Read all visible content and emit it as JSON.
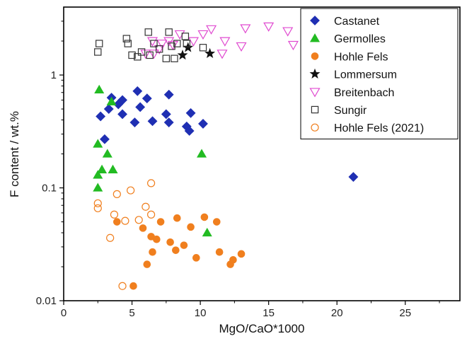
{
  "chart_data": {
    "type": "scatter",
    "xlabel": "MgO/CaO*1000",
    "ylabel": "F content / wt.%",
    "xlim": [
      0,
      29
    ],
    "ylim": [
      0.01,
      4
    ],
    "y_scale": "log",
    "x_ticks": [
      "0",
      "5",
      "10",
      "15",
      "20",
      "25"
    ],
    "y_ticks": [
      "0.01",
      "0.1",
      "1"
    ],
    "grid": false,
    "legend_position": "top-right",
    "series": [
      {
        "name": "Castanet",
        "marker": "diamond",
        "color": "#1f2fb3",
        "filled": true,
        "points": [
          [
            2.7,
            0.43
          ],
          [
            3.0,
            0.27
          ],
          [
            3.3,
            0.5
          ],
          [
            3.5,
            0.63
          ],
          [
            4.0,
            0.55
          ],
          [
            4.3,
            0.6
          ],
          [
            4.3,
            0.45
          ],
          [
            5.2,
            0.38
          ],
          [
            5.4,
            0.72
          ],
          [
            5.6,
            0.52
          ],
          [
            6.1,
            0.62
          ],
          [
            6.5,
            0.39
          ],
          [
            7.5,
            0.45
          ],
          [
            7.7,
            0.67
          ],
          [
            7.7,
            0.38
          ],
          [
            9.0,
            0.35
          ],
          [
            9.2,
            0.32
          ],
          [
            9.3,
            0.46
          ],
          [
            10.2,
            0.37
          ],
          [
            21.2,
            0.125
          ]
        ]
      },
      {
        "name": "Germolles",
        "marker": "triangle-up",
        "color": "#22bb22",
        "filled": true,
        "points": [
          [
            2.5,
            0.245
          ],
          [
            2.5,
            0.13
          ],
          [
            2.5,
            0.1
          ],
          [
            2.6,
            0.74
          ],
          [
            2.8,
            0.145
          ],
          [
            3.2,
            0.2
          ],
          [
            3.5,
            0.58
          ],
          [
            3.6,
            0.145
          ],
          [
            10.1,
            0.2
          ],
          [
            10.5,
            0.04
          ]
        ]
      },
      {
        "name": "Hohle Fels",
        "marker": "circle",
        "color": "#f07f1e",
        "filled": true,
        "points": [
          [
            3.9,
            0.05
          ],
          [
            5.1,
            0.0135
          ],
          [
            5.8,
            0.044
          ],
          [
            6.1,
            0.021
          ],
          [
            6.4,
            0.037
          ],
          [
            6.5,
            0.027
          ],
          [
            6.8,
            0.035
          ],
          [
            7.1,
            0.05
          ],
          [
            7.8,
            0.033
          ],
          [
            8.2,
            0.028
          ],
          [
            8.3,
            0.054
          ],
          [
            8.8,
            0.031
          ],
          [
            9.3,
            0.045
          ],
          [
            9.7,
            0.024
          ],
          [
            10.3,
            0.055
          ],
          [
            11.2,
            0.05
          ],
          [
            11.4,
            0.027
          ],
          [
            12.2,
            0.021
          ],
          [
            12.4,
            0.023
          ],
          [
            13.0,
            0.026
          ]
        ]
      },
      {
        "name": "Lommersum",
        "marker": "star",
        "color": "#111111",
        "filled": true,
        "points": [
          [
            8.7,
            1.5
          ],
          [
            9.1,
            1.75
          ],
          [
            10.7,
            1.55
          ]
        ]
      },
      {
        "name": "Breitenbach",
        "marker": "triangle-down",
        "color": "#e04ad0",
        "filled": false,
        "points": [
          [
            6.0,
            1.55
          ],
          [
            6.5,
            2.0
          ],
          [
            6.6,
            1.55
          ],
          [
            7.0,
            1.7
          ],
          [
            7.2,
            1.9
          ],
          [
            7.7,
            2.0
          ],
          [
            8.0,
            1.85
          ],
          [
            8.5,
            2.3
          ],
          [
            9.5,
            2.0
          ],
          [
            10.2,
            2.3
          ],
          [
            10.8,
            2.55
          ],
          [
            11.6,
            1.55
          ],
          [
            11.8,
            2.0
          ],
          [
            13.0,
            1.8
          ],
          [
            13.3,
            2.6
          ],
          [
            15.0,
            2.7
          ],
          [
            16.4,
            2.45
          ],
          [
            16.8,
            1.85
          ],
          [
            18.0,
            2.45
          ]
        ]
      },
      {
        "name": "Sungir",
        "marker": "square",
        "color": "#333333",
        "filled": false,
        "points": [
          [
            2.5,
            1.6
          ],
          [
            2.6,
            1.9
          ],
          [
            4.6,
            2.1
          ],
          [
            4.7,
            1.9
          ],
          [
            5.0,
            1.5
          ],
          [
            5.4,
            1.45
          ],
          [
            5.7,
            1.6
          ],
          [
            6.2,
            2.4
          ],
          [
            6.3,
            1.5
          ],
          [
            6.6,
            1.9
          ],
          [
            7.0,
            1.7
          ],
          [
            7.5,
            1.4
          ],
          [
            7.7,
            2.4
          ],
          [
            7.9,
            1.8
          ],
          [
            8.1,
            1.4
          ],
          [
            8.3,
            1.9
          ],
          [
            8.9,
            2.2
          ],
          [
            9.0,
            1.9
          ],
          [
            10.2,
            1.75
          ]
        ]
      },
      {
        "name": "Hohle Fels (2021)",
        "marker": "circle",
        "color": "#f07f1e",
        "filled": false,
        "points": [
          [
            2.5,
            0.073
          ],
          [
            2.5,
            0.066
          ],
          [
            3.4,
            0.036
          ],
          [
            3.7,
            0.058
          ],
          [
            3.9,
            0.088
          ],
          [
            4.3,
            0.0135
          ],
          [
            4.5,
            0.051
          ],
          [
            4.9,
            0.095
          ],
          [
            5.5,
            0.052
          ],
          [
            6.0,
            0.068
          ],
          [
            6.4,
            0.11
          ],
          [
            6.4,
            0.058
          ]
        ]
      }
    ]
  }
}
